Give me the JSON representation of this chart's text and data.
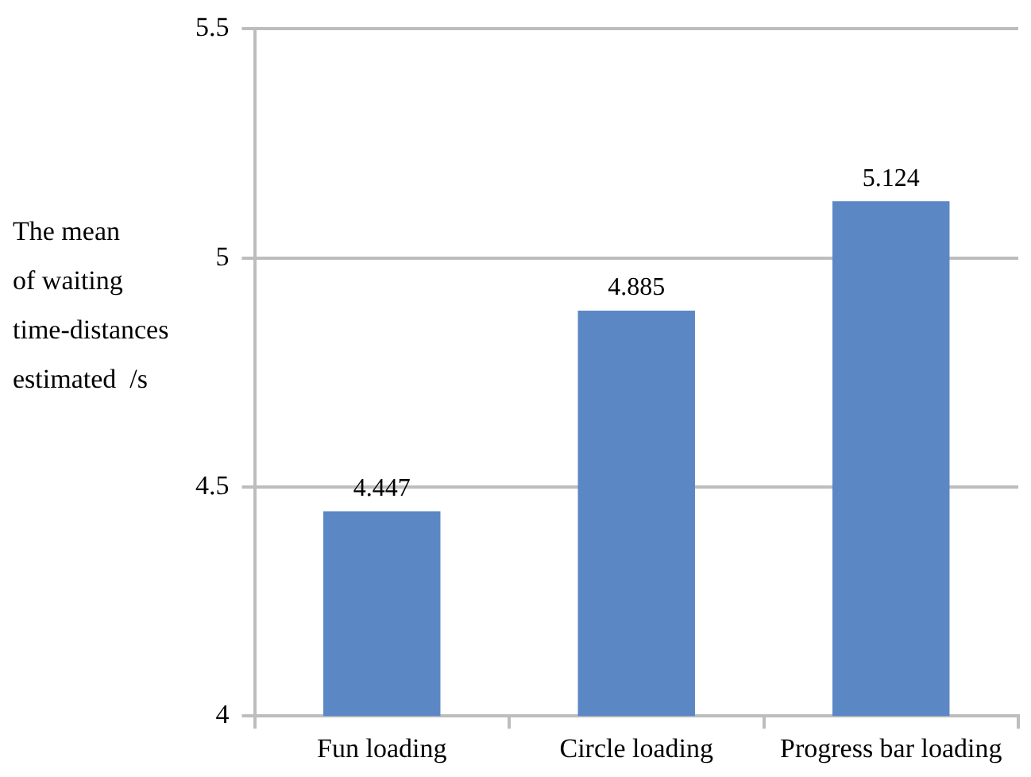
{
  "chart_data": {
    "type": "bar",
    "ylabel": "The mean\nof waiting\ntime-distances\nestimated  /s",
    "categories": [
      "Fun loading",
      "Circle loading",
      "Progress bar loading"
    ],
    "values": [
      4.447,
      4.885,
      5.124
    ],
    "data_labels": true,
    "color": "#5b87c5",
    "ylim": [
      4,
      5.5
    ],
    "yticks": [
      4,
      4.5,
      5,
      5.5
    ],
    "grid": "y",
    "legend": false
  }
}
